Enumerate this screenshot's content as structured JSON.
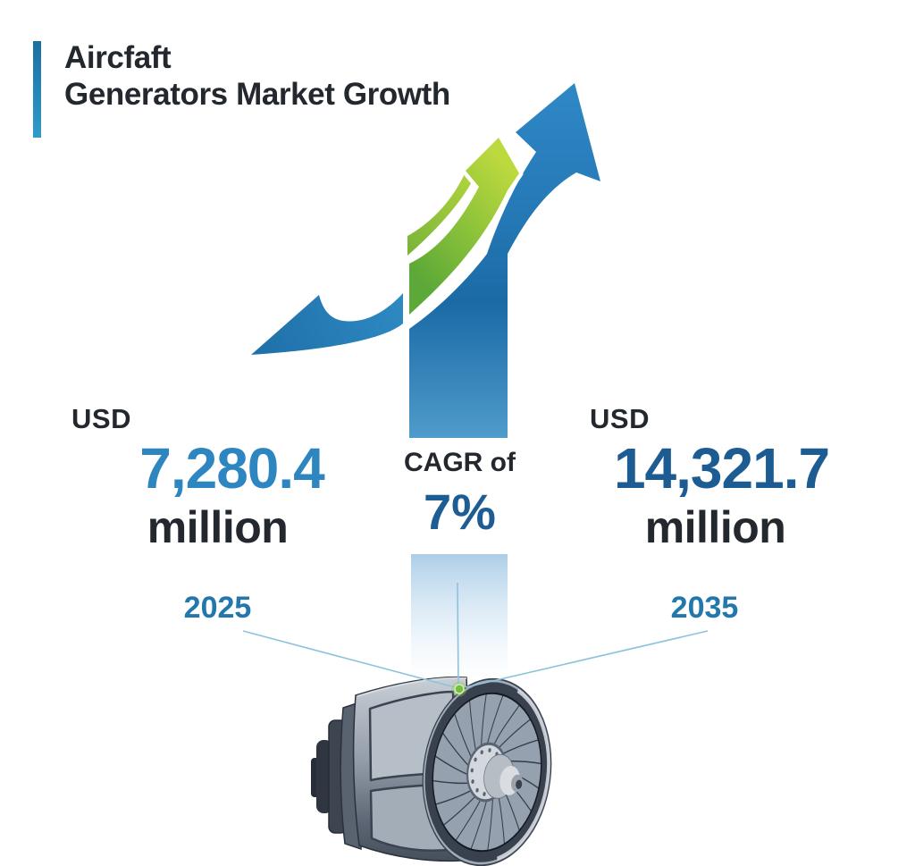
{
  "title": {
    "line1": "Aircfaft",
    "line2": "Generators Market Growth"
  },
  "stats": {
    "start": {
      "currency": "USD",
      "value": "7,280.4",
      "unit": "million",
      "year": "2025"
    },
    "end": {
      "currency": "USD",
      "value": "14,321.7",
      "unit": "million",
      "year": "2035"
    },
    "cagr": {
      "label": "CAGR of",
      "value": "7%"
    }
  },
  "icons": {
    "growth_arrow": "upward-trend-arrows",
    "marker": "green-marker-dot",
    "illustration": "aircraft-engine-generator"
  },
  "colors": {
    "accent_bar_top": "#1b6fa0",
    "accent_bar_bottom": "#2f9cc9",
    "title_text": "#23272e",
    "arrow_blue": "#2e86c1",
    "bar_blue_dark": "#1b6aa6",
    "bar_blue_light": "#4f9bcb",
    "green_light": "#bcd93e",
    "green_dark": "#55a238",
    "value_start_blue": "#2e86c1",
    "value_end_blue": "#1d5c92",
    "cagr_blue": "#1e5c94",
    "year_blue": "#2277ad",
    "connector_line": "#8ec2dc",
    "marker_green": "#74bf3e"
  },
  "chart_data": {
    "type": "bar",
    "title": "Aircfaft Generators Market Growth",
    "categories": [
      "2025",
      "2035"
    ],
    "values": [
      7280.4,
      14321.7
    ],
    "unit": "USD million",
    "cagr_percent": 7,
    "annotations": [
      "CAGR of 7%",
      "USD 7,280.4 million (2025)",
      "USD 14,321.7 million (2035)"
    ],
    "legend": "none",
    "grid": false
  }
}
